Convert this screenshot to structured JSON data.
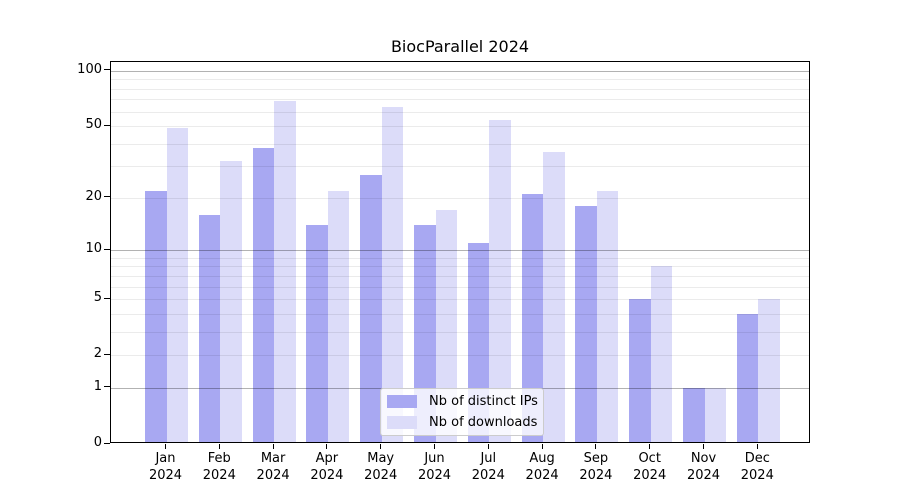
{
  "title": "BiocParallel 2024",
  "chart_data": {
    "type": "bar",
    "title": "BiocParallel 2024",
    "categories": [
      "Jan",
      "Feb",
      "Mar",
      "Apr",
      "May",
      "Jun",
      "Jul",
      "Aug",
      "Sep",
      "Oct",
      "Nov",
      "Dec"
    ],
    "year_label": "2024",
    "series": [
      {
        "name": "Nb of distinct IPs",
        "color": "#a8a8f2",
        "values": [
          22,
          16,
          38,
          14,
          27,
          14,
          11,
          21,
          18,
          5,
          1,
          4
        ]
      },
      {
        "name": "Nb of downloads",
        "color": "#dcdcf9",
        "values": [
          49,
          32,
          69,
          22,
          64,
          17,
          54,
          36,
          22,
          8,
          1,
          5
        ]
      }
    ],
    "yscale": "log1p",
    "ylim": [
      0,
      112
    ],
    "y_tick_labels": [
      0,
      1,
      2,
      5,
      10,
      20,
      50,
      100
    ],
    "y_major_gridlines": [
      1,
      10,
      100
    ],
    "y_minor_gridlines": [
      2,
      3,
      4,
      5,
      6,
      7,
      8,
      9,
      20,
      30,
      40,
      50,
      60,
      70,
      80,
      90
    ],
    "grid": "on",
    "grid_above_bars": true,
    "legend_position": "lower center",
    "xlabel": "",
    "ylabel": ""
  },
  "style_colors": {
    "bar_distinct_ips": "#a8a8f2",
    "bar_downloads": "#dcdcf9",
    "major_grid": "rgba(0,0,0,0.30)",
    "minor_grid": "rgba(0,0,0,0.08)",
    "axis": "#000000",
    "legend_border": "#cccccc",
    "legend_bg": "rgba(255,255,255,0.8)"
  }
}
